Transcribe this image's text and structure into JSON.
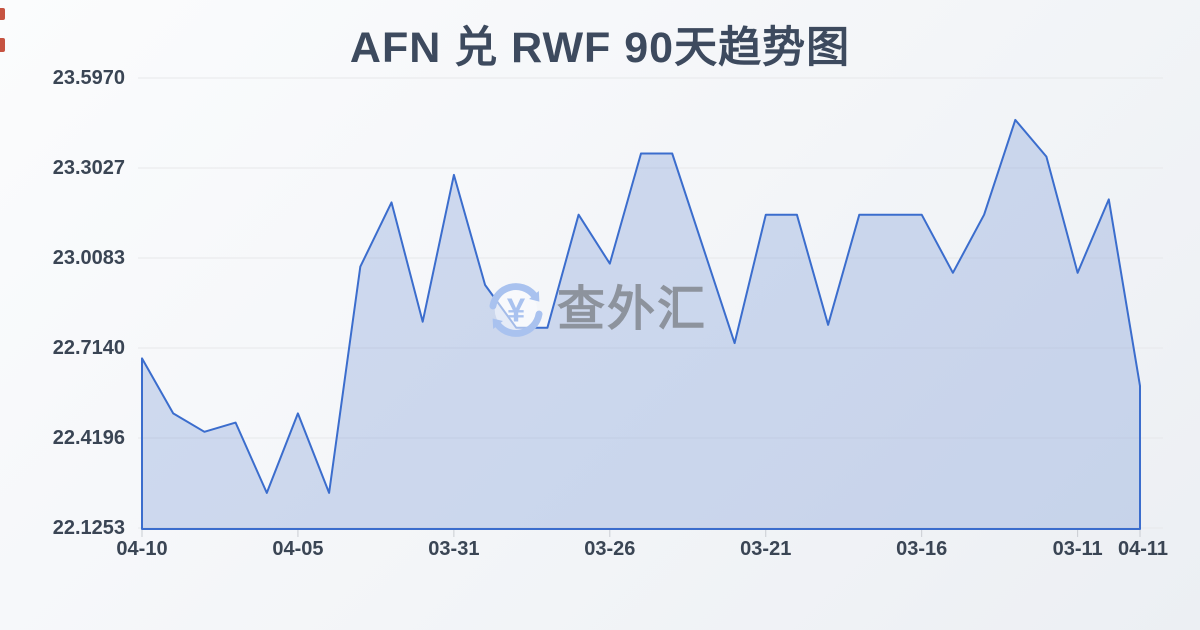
{
  "chart_data": {
    "type": "area",
    "title": "AFN 兑 RWF 90天趋势图",
    "xlabel": "",
    "ylabel": "",
    "ylim": [
      22.1253,
      23.597
    ],
    "y_ticks": [
      "23.5970",
      "23.3027",
      "23.0083",
      "22.7140",
      "22.4196",
      "22.1253"
    ],
    "x_ticks": [
      {
        "label": "04-10",
        "index": 0
      },
      {
        "label": "04-05",
        "index": 5
      },
      {
        "label": "03-31",
        "index": 10
      },
      {
        "label": "03-26",
        "index": 15
      },
      {
        "label": "03-21",
        "index": 20
      },
      {
        "label": "03-16",
        "index": 25
      },
      {
        "label": "03-11",
        "index": 30
      },
      {
        "label": "04-11",
        "index": 32
      }
    ],
    "num_points": 33,
    "values": [
      22.68,
      22.5,
      22.44,
      22.47,
      22.24,
      22.5,
      22.24,
      22.98,
      23.19,
      22.8,
      23.28,
      22.92,
      22.78,
      22.78,
      23.15,
      22.99,
      23.35,
      23.35,
      23.04,
      22.73,
      23.15,
      23.15,
      22.79,
      23.15,
      23.15,
      23.15,
      22.96,
      23.15,
      23.46,
      23.34,
      22.96,
      23.2,
      22.59
    ],
    "grid": "horizontal-only",
    "legend": "none"
  },
  "watermark": {
    "text": "查外汇",
    "icon": "currency-exchange-circular-arrows-yen-icon",
    "icon_symbol": "¥",
    "icon_color": "#a9c2ef",
    "text_color": "#8d939d"
  },
  "colors": {
    "line": "#3b6dcd",
    "fill": "rgba(99,138,210,0.28)",
    "gridline": "#e7e8ea",
    "tick": "#c9ccd2",
    "title_text": "#3d4a5e",
    "axis_text": "#3a4554",
    "background": "#f3f5f8",
    "edge_artifact": "#c0402c"
  }
}
